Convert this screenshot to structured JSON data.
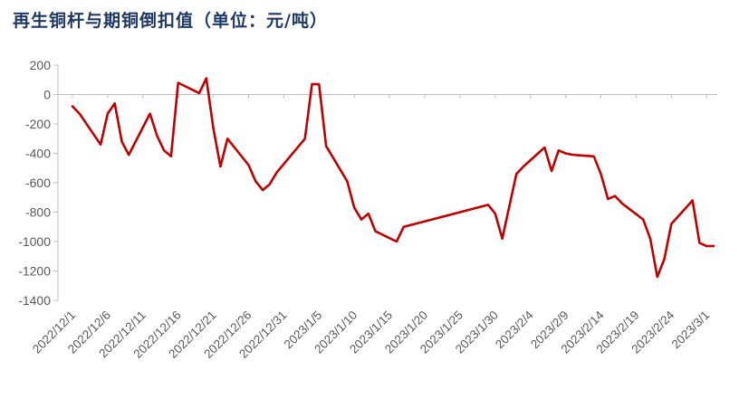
{
  "title": "再生铜杆与期铜倒扣值（单位：元/吨）",
  "chart_data": {
    "type": "line",
    "title": "再生铜杆与期铜倒扣值（单位：元/吨）",
    "xlabel": "",
    "ylabel": "",
    "ylim": [
      -1400,
      200
    ],
    "yticks": [
      200,
      0,
      -200,
      -400,
      -600,
      -800,
      -1000,
      -1200,
      -1400
    ],
    "xlim": [
      "2022-12-01",
      "2023-03-02"
    ],
    "xtick_labels": [
      "2022/12/1",
      "2022/12/6",
      "2022/12/11",
      "2022/12/16",
      "2022/12/21",
      "2022/12/26",
      "2022/12/31",
      "2023/1/5",
      "2023/1/10",
      "2023/1/15",
      "2023/1/20",
      "2023/1/25",
      "2023/1/30",
      "2023/2/4",
      "2023/2/9",
      "2023/2/14",
      "2023/2/19",
      "2023/2/24",
      "2023/3/1"
    ],
    "grid": false,
    "line_color": "#c00000",
    "series": [
      {
        "x": [
          "2022-12-01",
          "2022-12-02",
          "2022-12-05",
          "2022-12-06",
          "2022-12-07",
          "2022-12-08",
          "2022-12-09",
          "2022-12-12",
          "2022-12-13",
          "2022-12-14",
          "2022-12-15",
          "2022-12-16",
          "2022-12-19",
          "2022-12-20",
          "2022-12-21",
          "2022-12-22",
          "2022-12-23",
          "2022-12-26",
          "2022-12-27",
          "2022-12-28",
          "2022-12-29",
          "2022-12-30",
          "2023-01-03",
          "2023-01-04",
          "2023-01-05",
          "2023-01-06",
          "2023-01-09",
          "2023-01-10",
          "2023-01-11",
          "2023-01-12",
          "2023-01-13",
          "2023-01-16",
          "2023-01-17",
          "2023-01-29",
          "2023-01-30",
          "2023-01-31",
          "2023-02-01",
          "2023-02-02",
          "2023-02-03",
          "2023-02-06",
          "2023-02-07",
          "2023-02-08",
          "2023-02-09",
          "2023-02-10",
          "2023-02-13",
          "2023-02-14",
          "2023-02-15",
          "2023-02-16",
          "2023-02-17",
          "2023-02-20",
          "2023-02-21",
          "2023-02-22",
          "2023-02-23",
          "2023-02-24",
          "2023-02-27",
          "2023-02-28",
          "2023-03-01",
          "2023-03-02"
        ],
        "y": [
          -80,
          -130,
          -340,
          -130,
          -60,
          -320,
          -410,
          -130,
          -280,
          -380,
          -420,
          80,
          10,
          110,
          -230,
          -490,
          -300,
          -480,
          -590,
          -650,
          -610,
          -530,
          -300,
          70,
          70,
          -350,
          -590,
          -770,
          -850,
          -810,
          -930,
          -1000,
          -900,
          -750,
          -810,
          -980,
          -760,
          -540,
          -490,
          -360,
          -520,
          -380,
          -400,
          -410,
          -420,
          -540,
          -710,
          -690,
          -740,
          -850,
          -980,
          -1240,
          -1120,
          -880,
          -720,
          -1010,
          -1030,
          -1030
        ]
      }
    ]
  }
}
